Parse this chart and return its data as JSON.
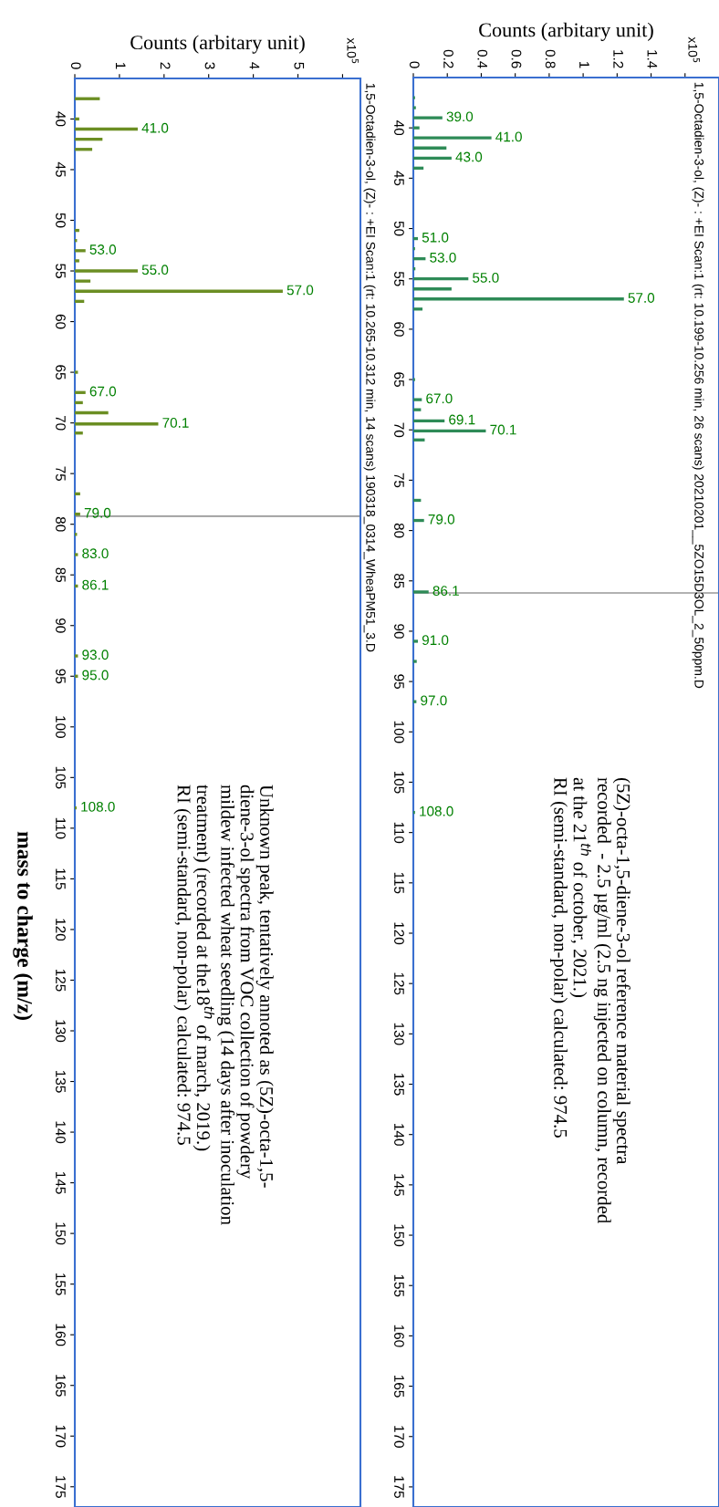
{
  "chart_data": [
    {
      "type": "bar",
      "orientation": "horizontal",
      "title": "1,5-Octadien-3-ol, (Z)- : +EI Scan:1 (rt: 10.199-10.256 min, 26 scans) 20210201__5ZO15D3OL_2_50ppm.D",
      "xlabel": "Counts (arbitary unit)",
      "x": [
        37,
        38,
        39,
        40,
        41,
        42,
        43,
        44,
        51,
        52,
        53,
        54,
        55,
        56,
        57,
        58,
        65,
        67,
        68,
        69.1,
        70.1,
        71,
        77,
        79,
        86.1,
        91,
        93,
        97,
        108
      ],
      "values": [
        0.01,
        0.015,
        0.171,
        0.036,
        0.46,
        0.195,
        0.225,
        0.06,
        0.027,
        0.01,
        0.072,
        0.012,
        0.324,
        0.225,
        1.24,
        0.054,
        0.01,
        0.05,
        0.045,
        0.184,
        0.427,
        0.067,
        0.045,
        0.063,
        0.09,
        0.027,
        0.02,
        0.018,
        0.01
      ],
      "color": "#2e8b57",
      "xlim": [
        0,
        1.8
      ],
      "xticks": [
        0,
        0.2,
        0.4,
        0.6,
        0.8,
        1,
        1.2,
        1.4,
        {
          "value": 1.6,
          "label": null
        }
      ],
      "ylim": [
        177,
        35
      ],
      "yticks": [
        40,
        45,
        50,
        55,
        60,
        65,
        70,
        75,
        80,
        85,
        90,
        95,
        100,
        105,
        110,
        115,
        120,
        125,
        130,
        135,
        140,
        145,
        150,
        155,
        160,
        165,
        170,
        175
      ],
      "ref_lines": [
        {
          "axis": "y",
          "value": 86.2,
          "color": "#999999"
        }
      ],
      "annotations": [
        "x10$^{5}$",
        "(5Z)-octa-1,5-diene-3-ol reference material spectra\nrecorded  - 2.5 µg/ml (2.5 ng injected on column, recorded\nat the 21$^{th}$ of october, 2021.)\nRI (semi-standard, non-polar) calculated: 974.5",
        {
          "text": "39.0",
          "x": 0.171,
          "y": 39
        },
        {
          "text": "41.0",
          "x": 0.46,
          "y": 41
        },
        {
          "text": "43.0",
          "x": 0.225,
          "y": 43
        },
        {
          "text": "51.0",
          "x": 0.027,
          "y": 51
        },
        {
          "text": "53.0",
          "x": 0.072,
          "y": 53
        },
        {
          "text": "55.0",
          "x": 0.324,
          "y": 55
        },
        {
          "text": "57.0",
          "x": 1.24,
          "y": 57
        },
        {
          "text": "67.0",
          "x": 0.05,
          "y": 67
        },
        {
          "text": "69.1",
          "x": 0.184,
          "y": 69.1
        },
        {
          "text": "70.1",
          "x": 0.427,
          "y": 70.1
        },
        {
          "text": "79.0",
          "x": 0.063,
          "y": 79
        },
        {
          "text": "86.1",
          "x": 0.09,
          "y": 86.1
        },
        {
          "text": "91.0",
          "x": 0.027,
          "y": 91
        },
        {
          "text": "97.0",
          "x": 0.018,
          "y": 97
        },
        {
          "text": "108.0",
          "x": 0.01,
          "y": 108
        }
      ]
    },
    {
      "type": "bar",
      "orientation": "horizontal",
      "title": "1,5-Octadien-3-ol, (Z)- : +EI Scan:1 (rt: 10.265-10.312 min, 14 scans) 190318_0314_WheaPM51_3.D",
      "xlabel": "Counts (arbitary unit)",
      "ylabel": "mass to charge (m/z)",
      "x": [
        38,
        40,
        41,
        42,
        43,
        51,
        52,
        53,
        54,
        55,
        56,
        57,
        58,
        65,
        67,
        68,
        69,
        70.1,
        71,
        77,
        79,
        81,
        83,
        86.1,
        93,
        95,
        108
      ],
      "values": [
        0.56,
        0.1,
        1.41,
        0.62,
        0.39,
        0.1,
        0.05,
        0.24,
        0.1,
        1.41,
        0.35,
        4.66,
        0.21,
        0.07,
        0.24,
        0.18,
        0.75,
        1.87,
        0.18,
        0.12,
        0.12,
        0.05,
        0.07,
        0.07,
        0.07,
        0.07,
        0.04
      ],
      "color": "#6b8e23",
      "xlim": [
        0,
        6.4
      ],
      "xticks": [
        0,
        1,
        2,
        3,
        4,
        5,
        {
          "value": 6,
          "label": null
        }
      ],
      "ylim": [
        177,
        36
      ],
      "yticks": [
        40,
        45,
        50,
        55,
        60,
        65,
        70,
        75,
        80,
        85,
        90,
        95,
        100,
        105,
        110,
        115,
        120,
        125,
        130,
        135,
        140,
        145,
        150,
        155,
        160,
        165,
        170,
        175
      ],
      "ref_lines": [
        {
          "axis": "y",
          "value": 79.2,
          "color": "#999999"
        }
      ],
      "annotations": [
        "x10$^{5}$",
        "Unknown peak, tentatively annoted as (5Z)-octa-1,5-\ndiene-3-ol spectra from VOC collection of powdery\nmildew infected wheat seedling (14 days after inoculation\ntreatment) (recorded at the18$^{th}$ of march, 2019.)\nRI (semi-standard, non-polar) calculated: 974.5",
        {
          "text": "41.0",
          "x": 1.41,
          "y": 41
        },
        {
          "text": "53.0",
          "x": 0.24,
          "y": 53
        },
        {
          "text": "55.0",
          "x": 1.41,
          "y": 55
        },
        {
          "text": "57.0",
          "x": 4.66,
          "y": 57
        },
        {
          "text": "67.0",
          "x": 0.24,
          "y": 67
        },
        {
          "text": "70.1",
          "x": 1.87,
          "y": 70.1
        },
        {
          "text": "79.0",
          "x": 0.12,
          "y": 79
        },
        {
          "text": "83.0",
          "x": 0.07,
          "y": 83
        },
        {
          "text": "86.1",
          "x": 0.07,
          "y": 86.1
        },
        {
          "text": "93.0",
          "x": 0.07,
          "y": 93
        },
        {
          "text": "95.0",
          "x": 0.07,
          "y": 95
        },
        {
          "text": "108.0",
          "x": 0.04,
          "y": 108
        }
      ]
    }
  ]
}
